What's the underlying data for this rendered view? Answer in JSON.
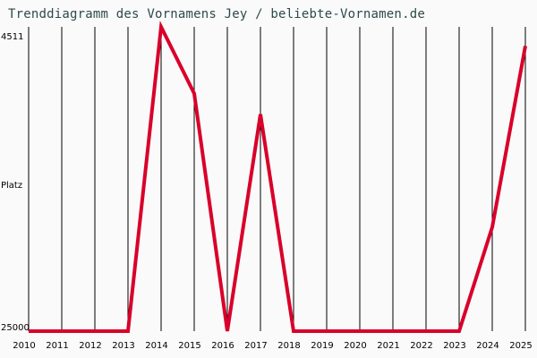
{
  "title": "Trenddiagramm des Vornamens Jey / beliebte-Vornamen.de",
  "y_axis": {
    "label": "Platz",
    "top_tick": "4511",
    "bottom_tick": "25000"
  },
  "colors": {
    "line": "#d9002a",
    "grid": "#000000",
    "background": "#fafafa",
    "title": "#2d4a4a"
  },
  "chart_data": {
    "type": "line",
    "title": "Trenddiagramm des Vornamens Jey / beliebte-Vornamen.de",
    "xlabel": "",
    "ylabel": "Platz",
    "y_inverted": true,
    "ylim": [
      25000,
      4511
    ],
    "grid": {
      "vertical": true,
      "horizontal": false
    },
    "legend": null,
    "categories": [
      "2010",
      "2011",
      "2012",
      "2013",
      "2014",
      "2015",
      "2016",
      "2017",
      "2018",
      "2019",
      "2020",
      "2021",
      "2022",
      "2023",
      "2024",
      "2025"
    ],
    "series": [
      {
        "name": "Jey",
        "values": [
          25000,
          25000,
          25000,
          25000,
          4511,
          9000,
          25000,
          10400,
          25000,
          25000,
          25000,
          25000,
          25000,
          25000,
          18000,
          5800
        ]
      }
    ]
  }
}
